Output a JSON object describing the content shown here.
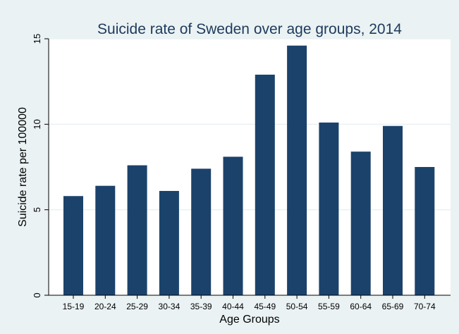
{
  "chart_data": {
    "type": "bar",
    "title": "Suicide rate of Sweden over age groups, 2014",
    "xlabel": "Age Groups",
    "ylabel": "Suicide rate per 100000",
    "categories": [
      "15-19",
      "20-24",
      "25-29",
      "30-34",
      "35-39",
      "40-44",
      "45-49",
      "50-54",
      "55-59",
      "60-64",
      "65-69",
      "70-74"
    ],
    "values": [
      5.8,
      6.4,
      7.6,
      6.1,
      7.4,
      8.1,
      12.9,
      14.6,
      10.1,
      8.4,
      9.9,
      7.5
    ],
    "ylim": [
      0,
      15
    ],
    "yticks": [
      0,
      5,
      10,
      15
    ],
    "ytick_labels": [
      "0",
      "5",
      "10",
      "15"
    ],
    "grid": true,
    "bar_color": "#1b426b",
    "background_color": "#eaf2f3",
    "plot_background_color": "#ffffff",
    "gridline_color": "#eaf2f3"
  }
}
